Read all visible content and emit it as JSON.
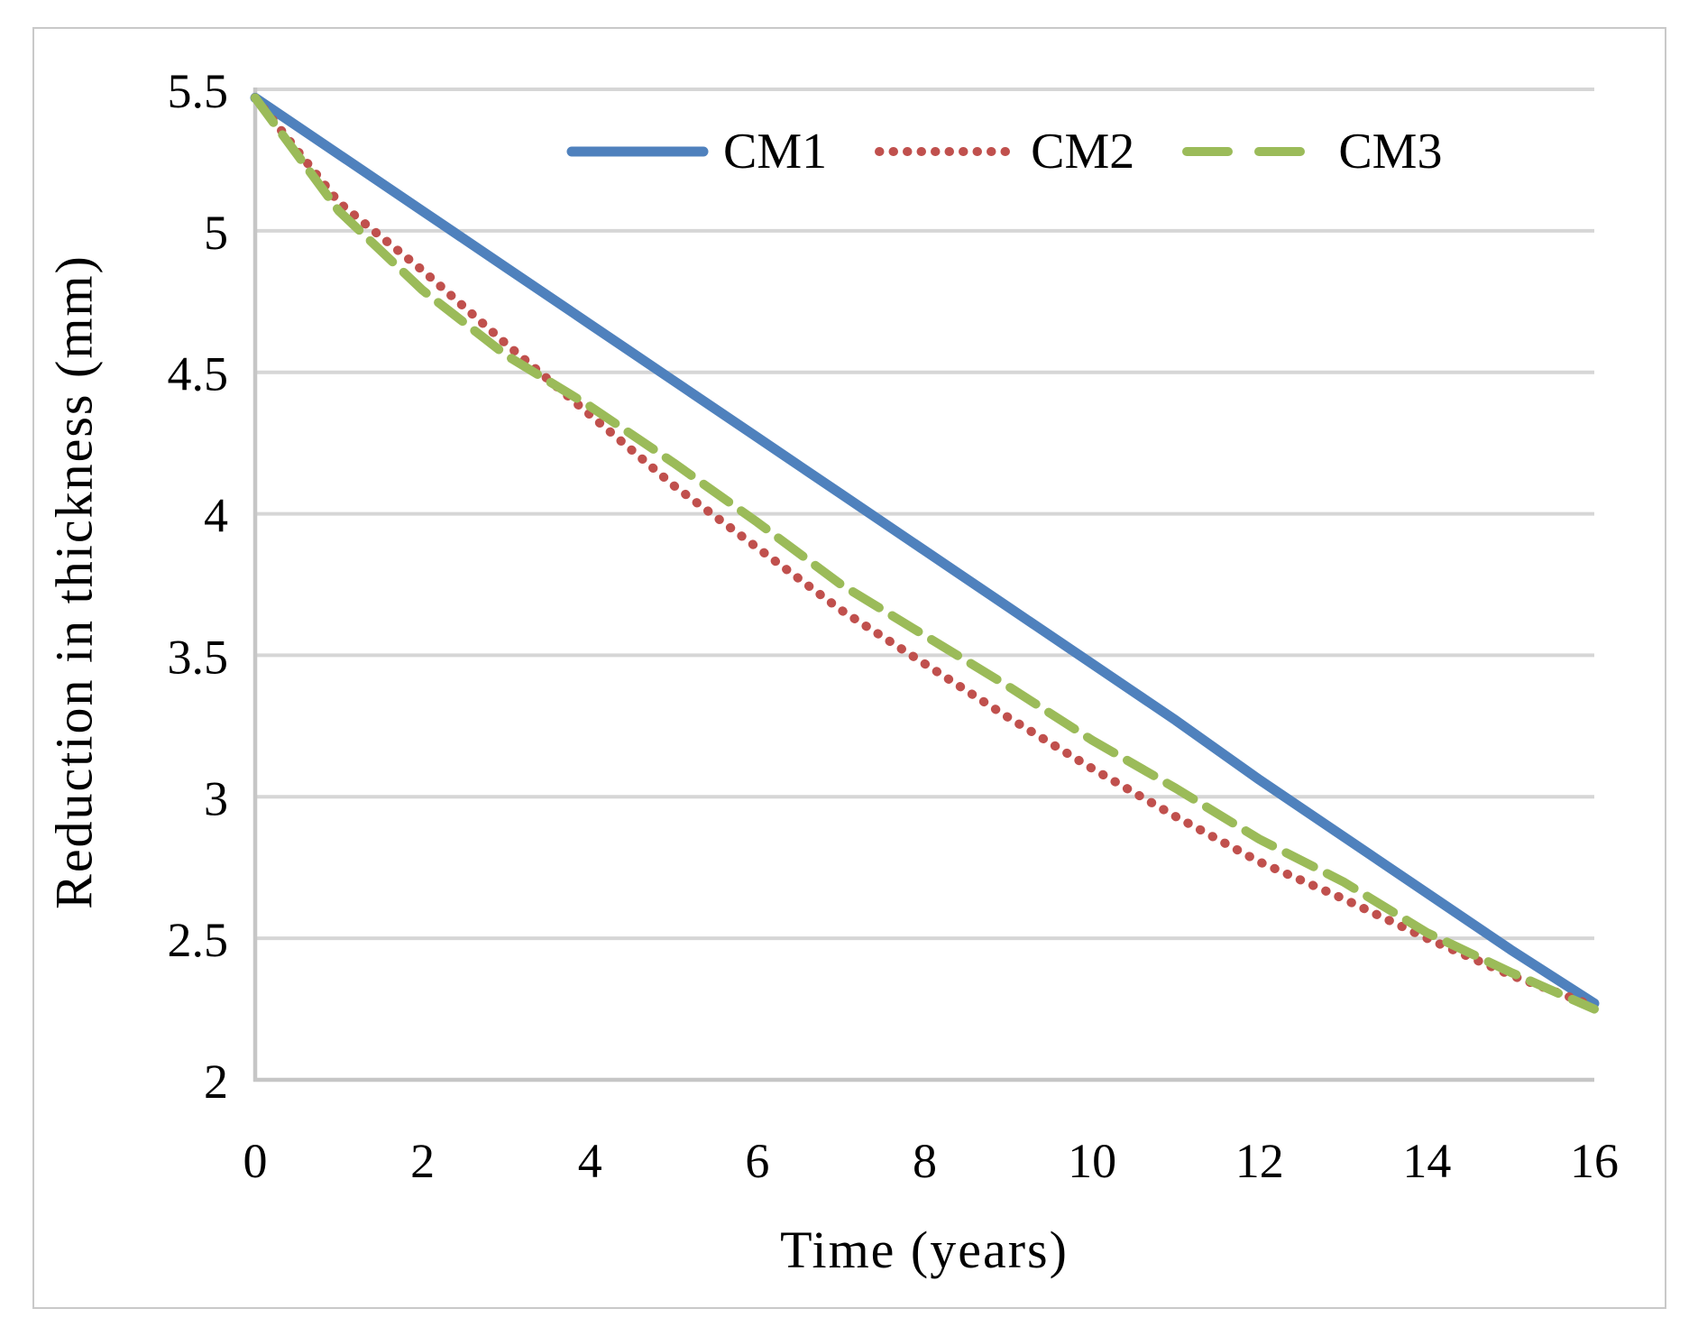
{
  "figure": {
    "background_color": "#FFFFFF",
    "border_color": "#C9C9C9"
  },
  "chart_data": {
    "type": "line",
    "title": "",
    "xlabel": "Time (years)",
    "ylabel": "Reduction in thickness (mm)",
    "xlim": [
      0,
      16
    ],
    "ylim": [
      2,
      5.5
    ],
    "xticks": [
      "0",
      "2",
      "4",
      "6",
      "8",
      "10",
      "12",
      "14",
      "16"
    ],
    "yticks": [
      "5.5",
      "5",
      "4.5",
      "4",
      "3.5",
      "3",
      "2.5",
      "2"
    ],
    "grid": "horizontal",
    "gridline_color": "#D6D6D6",
    "axis_color": "#C6C6C6",
    "legend_position": "top-center-inside",
    "x": [
      0,
      1,
      2,
      3,
      4,
      5,
      6,
      7,
      8,
      9,
      10,
      11,
      12,
      13,
      14,
      15,
      16
    ],
    "series": [
      {
        "name": "CM1",
        "color": "#4F81BD",
        "dash": "solid",
        "values": [
          5.47,
          5.27,
          5.07,
          4.87,
          4.67,
          4.47,
          4.27,
          4.07,
          3.87,
          3.67,
          3.47,
          3.27,
          3.06,
          2.86,
          2.66,
          2.46,
          2.27
        ]
      },
      {
        "name": "CM2",
        "color": "#C0504D",
        "dash": "dot",
        "values": [
          5.47,
          5.1,
          4.86,
          4.6,
          4.35,
          4.1,
          3.88,
          3.66,
          3.47,
          3.28,
          3.1,
          2.93,
          2.77,
          2.64,
          2.5,
          2.37,
          2.26
        ]
      },
      {
        "name": "CM3",
        "color": "#9BBB59",
        "dash": "dash",
        "values": [
          5.47,
          5.07,
          4.79,
          4.56,
          4.38,
          4.18,
          3.97,
          3.75,
          3.57,
          3.39,
          3.2,
          3.03,
          2.85,
          2.7,
          2.52,
          2.38,
          2.25
        ]
      }
    ]
  }
}
